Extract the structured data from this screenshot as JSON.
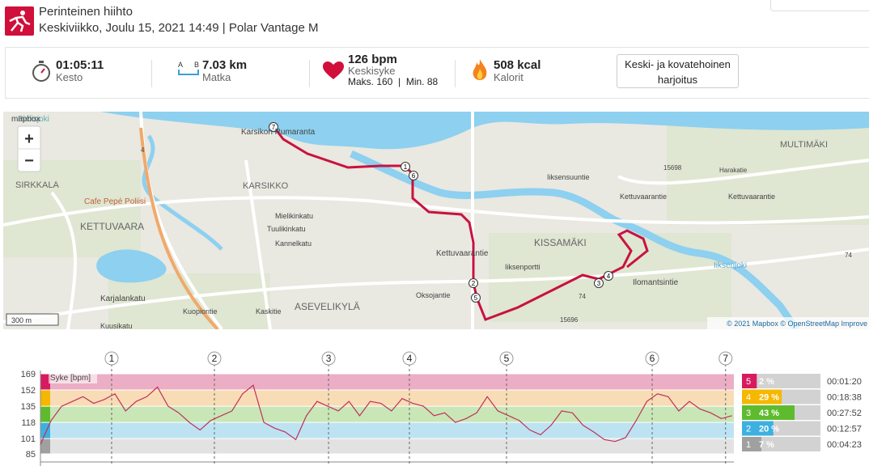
{
  "header": {
    "title": "Perinteinen hiihto",
    "subtitle": "Keskiviikko, Joulu 15, 2021 14:49 | Polar Vantage M"
  },
  "stats": {
    "duration": {
      "value": "01:05:11",
      "label": "Kesto"
    },
    "distance": {
      "icon_a": "A",
      "icon_b": "B",
      "value": "7.03 km",
      "label": "Matka"
    },
    "heart_rate": {
      "value": "126 bpm",
      "label": "Keskisyke",
      "max": "Maks. 160",
      "separator": "|",
      "min": "Min. 88"
    },
    "calories": {
      "value": "508 kcal",
      "label": "Kalorit"
    },
    "benefit": "Keski- ja kovatehoinen harjoitus"
  },
  "map": {
    "logo": "mapbox",
    "zoom_in": "+",
    "zoom_out": "−",
    "scale": "300 m",
    "attribution": "© 2021 Mapbox © OpenStreetMap Improve",
    "labels": [
      "Pielisjoki",
      "SIRKKALA",
      "Cafe Pepé Poliisi",
      "KETTUVAARA",
      "KARSIKKO",
      "Karsikon Rumaranta",
      "Mielikinkatu",
      "Tuulikinkatu",
      "Kannelkatu",
      "Karjalankatu",
      "Kuusikatu",
      "Kaskitie",
      "Kuopiontie",
      "ASEVELIKYLÄ",
      "Oksojantie",
      "Kettuvaarantie",
      "Iiksenportti",
      "KISSAMÄKI",
      "Iiksensuuntie",
      "Kettuvaarantie",
      "MULTIMÄKI",
      "Ilomantsintie",
      "Iiksenjoki",
      "Harakatie",
      "Kettuvaarantie",
      "15698",
      "15696",
      "74",
      "74",
      "4"
    ]
  },
  "heart_rate_chart": {
    "type": "line",
    "label": "Syke [bpm]",
    "ylim": [
      85,
      169
    ],
    "yticks": [
      169,
      152,
      135,
      118,
      101,
      85
    ],
    "xlim": [
      0,
      65.18
    ],
    "laps": {
      "labels": [
        "1",
        "2",
        "3",
        "4",
        "5",
        "6",
        "7"
      ],
      "x": [
        6.69,
        16.35,
        27.08,
        34.68,
        43.81,
        57.5,
        64.4
      ]
    },
    "series": [
      {
        "name": "Syke",
        "color": "#c0305a",
        "x": [
          0,
          1,
          2,
          3,
          4,
          5,
          6,
          7,
          8,
          9,
          10,
          11,
          12,
          13,
          14,
          15,
          16,
          17,
          18,
          19,
          20,
          21,
          22,
          23,
          24,
          25,
          26,
          27,
          28,
          29,
          30,
          31,
          32,
          33,
          34,
          35,
          36,
          37,
          38,
          39,
          40,
          41,
          42,
          43,
          44,
          45,
          46,
          47,
          48,
          49,
          50,
          51,
          52,
          53,
          54,
          55,
          56,
          57,
          58,
          59,
          60,
          61,
          62,
          63,
          64,
          65
        ],
        "values": [
          95,
          120,
          135,
          140,
          145,
          138,
          142,
          148,
          130,
          140,
          145,
          155,
          135,
          128,
          118,
          110,
          120,
          125,
          130,
          148,
          157,
          118,
          112,
          108,
          100,
          125,
          140,
          135,
          130,
          140,
          125,
          140,
          138,
          130,
          143,
          138,
          135,
          125,
          128,
          118,
          122,
          128,
          145,
          130,
          125,
          120,
          110,
          105,
          115,
          130,
          128,
          115,
          108,
          100,
          98,
          102,
          120,
          140,
          148,
          145,
          130,
          140,
          132,
          128,
          122,
          125
        ]
      }
    ],
    "zones": [
      {
        "zone": "5",
        "color": "#d81b60",
        "band": "#ecaec4",
        "percent": 2,
        "percent_label": "2 %",
        "time": "00:01:20"
      },
      {
        "zone": "4",
        "color": "#f5b700",
        "band": "#f8dcb6",
        "percent": 29,
        "percent_label": "29 %",
        "time": "00:18:38"
      },
      {
        "zone": "3",
        "color": "#5fbb2e",
        "band": "#c9e6b6",
        "percent": 43,
        "percent_label": "43 %",
        "time": "00:27:52"
      },
      {
        "zone": "2",
        "color": "#3eb0e0",
        "band": "#bde3f2",
        "percent": 20,
        "percent_label": "20 %",
        "time": "00:12:57"
      },
      {
        "zone": "1",
        "color": "#a0a0a0",
        "band": "#e2e2e2",
        "percent": 7,
        "percent_label": "7 %",
        "time": "00:04:23"
      }
    ]
  }
}
